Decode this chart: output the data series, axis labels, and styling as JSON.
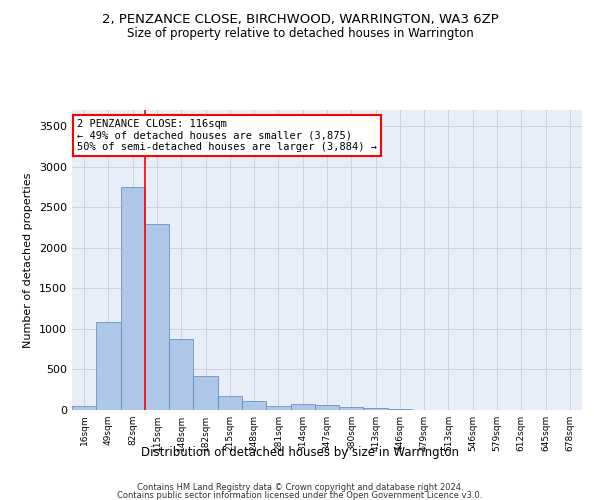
{
  "title": "2, PENZANCE CLOSE, BIRCHWOOD, WARRINGTON, WA3 6ZP",
  "subtitle": "Size of property relative to detached houses in Warrington",
  "xlabel": "Distribution of detached houses by size in Warrington",
  "ylabel": "Number of detached properties",
  "footer_line1": "Contains HM Land Registry data © Crown copyright and database right 2024.",
  "footer_line2": "Contains public sector information licensed under the Open Government Licence v3.0.",
  "categories": [
    "16sqm",
    "49sqm",
    "82sqm",
    "115sqm",
    "148sqm",
    "182sqm",
    "215sqm",
    "248sqm",
    "281sqm",
    "314sqm",
    "347sqm",
    "380sqm",
    "413sqm",
    "446sqm",
    "479sqm",
    "513sqm",
    "546sqm",
    "579sqm",
    "612sqm",
    "645sqm",
    "678sqm"
  ],
  "values": [
    50,
    1090,
    2750,
    2300,
    880,
    420,
    170,
    105,
    50,
    75,
    60,
    40,
    25,
    10,
    5,
    4,
    2,
    2,
    2,
    2,
    2
  ],
  "bar_color": "#aec6e8",
  "bar_edge_color": "#5588bb",
  "grid_color": "#c8d4e4",
  "background_color": "#e8eef8",
  "annotation_text": "2 PENZANCE CLOSE: 116sqm\n← 49% of detached houses are smaller (3,875)\n50% of semi-detached houses are larger (3,884) →",
  "annotation_box_color": "white",
  "annotation_box_edge_color": "red",
  "vline_color": "red",
  "vline_x_index": 3.0,
  "ylim": [
    0,
    3700
  ],
  "yticks": [
    0,
    500,
    1000,
    1500,
    2000,
    2500,
    3000,
    3500
  ]
}
